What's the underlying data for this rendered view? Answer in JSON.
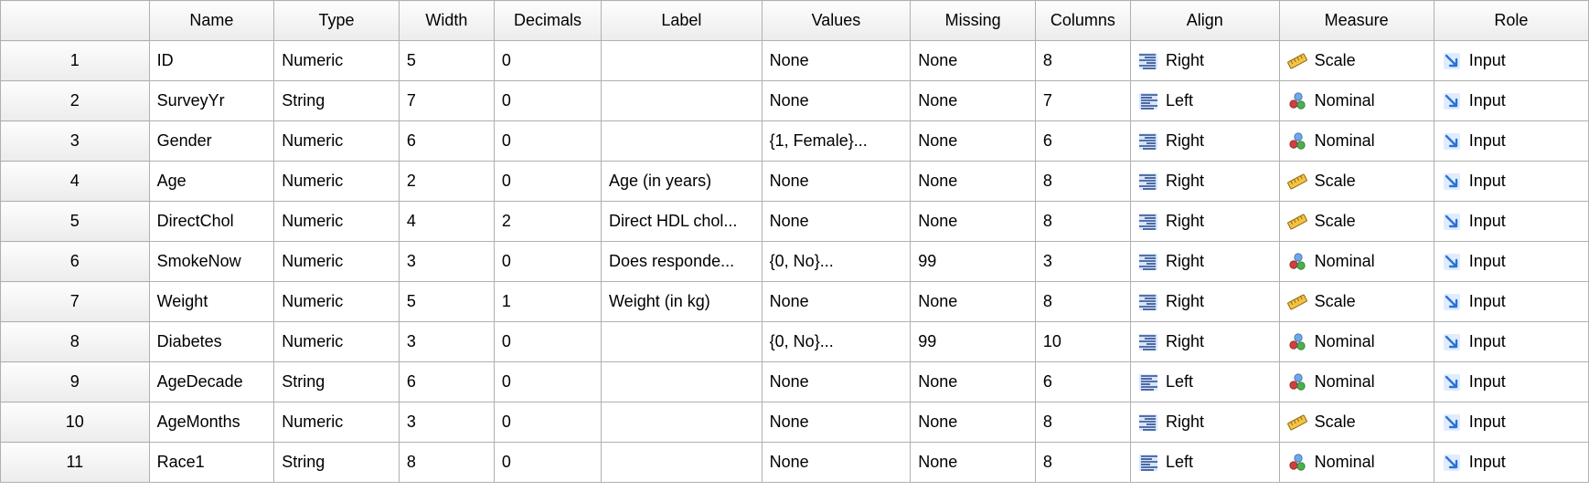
{
  "columns": [
    "Name",
    "Type",
    "Width",
    "Decimals",
    "Label",
    "Values",
    "Missing",
    "Columns",
    "Align",
    "Measure",
    "Role"
  ],
  "rows": [
    {
      "n": "1",
      "name": "ID",
      "type": "Numeric",
      "width": "5",
      "decimals": "0",
      "label": "",
      "values": "None",
      "missing": "None",
      "columns": "8",
      "align": "Right",
      "measure": "Scale",
      "role": "Input"
    },
    {
      "n": "2",
      "name": "SurveyYr",
      "type": "String",
      "width": "7",
      "decimals": "0",
      "label": "",
      "values": "None",
      "missing": "None",
      "columns": "7",
      "align": "Left",
      "measure": "Nominal",
      "role": "Input"
    },
    {
      "n": "3",
      "name": "Gender",
      "type": "Numeric",
      "width": "6",
      "decimals": "0",
      "label": "",
      "values": "{1, Female}...",
      "missing": "None",
      "columns": "6",
      "align": "Right",
      "measure": "Nominal",
      "role": "Input"
    },
    {
      "n": "4",
      "name": "Age",
      "type": "Numeric",
      "width": "2",
      "decimals": "0",
      "label": "Age (in years)",
      "values": "None",
      "missing": "None",
      "columns": "8",
      "align": "Right",
      "measure": "Scale",
      "role": "Input"
    },
    {
      "n": "5",
      "name": "DirectChol",
      "type": "Numeric",
      "width": "4",
      "decimals": "2",
      "label": "Direct HDL chol...",
      "values": "None",
      "missing": "None",
      "columns": "8",
      "align": "Right",
      "measure": "Scale",
      "role": "Input"
    },
    {
      "n": "6",
      "name": "SmokeNow",
      "type": "Numeric",
      "width": "3",
      "decimals": "0",
      "label": "Does responde...",
      "values": "{0, No}...",
      "missing": "99",
      "columns": "3",
      "align": "Right",
      "measure": "Nominal",
      "role": "Input"
    },
    {
      "n": "7",
      "name": "Weight",
      "type": "Numeric",
      "width": "5",
      "decimals": "1",
      "label": "Weight (in kg)",
      "values": "None",
      "missing": "None",
      "columns": "8",
      "align": "Right",
      "measure": "Scale",
      "role": "Input"
    },
    {
      "n": "8",
      "name": "Diabetes",
      "type": "Numeric",
      "width": "3",
      "decimals": "0",
      "label": "",
      "values": "{0, No}...",
      "missing": "99",
      "columns": "10",
      "align": "Right",
      "measure": "Nominal",
      "role": "Input"
    },
    {
      "n": "9",
      "name": "AgeDecade",
      "type": "String",
      "width": "6",
      "decimals": "0",
      "label": "",
      "values": "None",
      "missing": "None",
      "columns": "6",
      "align": "Left",
      "measure": "Nominal",
      "role": "Input"
    },
    {
      "n": "10",
      "name": "AgeMonths",
      "type": "Numeric",
      "width": "3",
      "decimals": "0",
      "label": "",
      "values": "None",
      "missing": "None",
      "columns": "8",
      "align": "Right",
      "measure": "Scale",
      "role": "Input"
    },
    {
      "n": "11",
      "name": "Race1",
      "type": "String",
      "width": "8",
      "decimals": "0",
      "label": "",
      "values": "None",
      "missing": "None",
      "columns": "8",
      "align": "Left",
      "measure": "Nominal",
      "role": "Input"
    }
  ],
  "icons": {
    "align": {
      "Right": "align-right-icon",
      "Left": "align-left-icon"
    },
    "measure": {
      "Scale": "ruler-icon",
      "Nominal": "nominal-circles-icon"
    },
    "role": {
      "Input": "input-arrow-icon"
    }
  },
  "colors": {
    "header_border": "#b0b0b0",
    "align_icon_stroke": "#2a4a8a",
    "align_icon_bg": "#d8e6ff",
    "ruler_fill": "#f6c244",
    "ruler_stroke": "#8a6a10",
    "nominal_blue": "#6fa8e8",
    "nominal_red": "#d04040",
    "nominal_green": "#4caf50",
    "role_arrow": "#2a72d4",
    "role_arrow_bg": "#e0ecff"
  }
}
